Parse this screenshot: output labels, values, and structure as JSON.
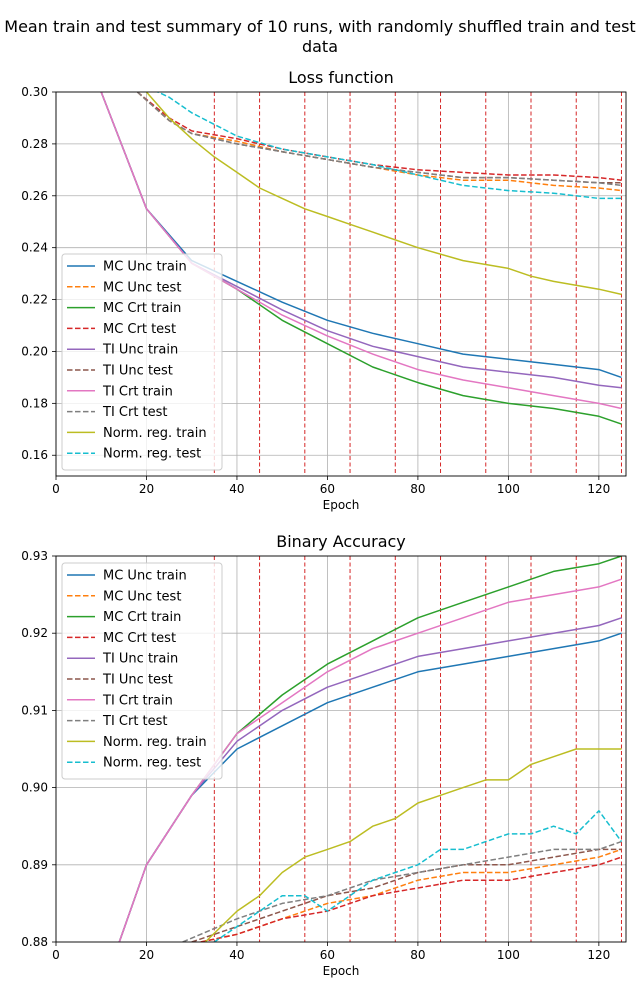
{
  "suptitle": "Mean train and test summary of 10 runs, with randomly shuffled train and test data",
  "chart_data": [
    {
      "type": "line",
      "title": "Loss function",
      "xlabel": "Epoch",
      "ylabel": "",
      "xlim": [
        0,
        126
      ],
      "ylim": [
        0.152,
        0.3
      ],
      "xticks": [
        0,
        20,
        40,
        60,
        80,
        100,
        120
      ],
      "xtick_labels": [
        "0",
        "20",
        "40",
        "60",
        "80",
        "100",
        "120"
      ],
      "yticks": [
        0.16,
        0.18,
        0.2,
        0.22,
        0.24,
        0.26,
        0.28,
        0.3
      ],
      "ytick_labels": [
        "0.16",
        "0.18",
        "0.20",
        "0.22",
        "0.24",
        "0.26",
        "0.28",
        "0.30"
      ],
      "grid": true,
      "legend": "lower-left",
      "vlines": {
        "x": [
          35,
          45,
          55,
          65,
          75,
          85,
          95,
          105,
          115,
          125
        ],
        "color": "#d62728",
        "style": "dashed"
      },
      "series": [
        {
          "name": "MC Unc train",
          "color": "#1f77b4",
          "dash": "solid",
          "x": [
            10,
            20,
            30,
            40,
            50,
            60,
            70,
            80,
            90,
            100,
            110,
            120,
            125
          ],
          "y": [
            0.3,
            0.255,
            0.235,
            0.227,
            0.219,
            0.212,
            0.207,
            0.203,
            0.199,
            0.197,
            0.195,
            0.193,
            0.19
          ]
        },
        {
          "name": "MC Unc test",
          "color": "#ff7f0e",
          "dash": "dashed",
          "x": [
            18,
            25,
            30,
            40,
            50,
            60,
            70,
            80,
            90,
            100,
            110,
            120,
            125
          ],
          "y": [
            0.3,
            0.289,
            0.284,
            0.281,
            0.277,
            0.274,
            0.271,
            0.268,
            0.266,
            0.266,
            0.264,
            0.263,
            0.262
          ]
        },
        {
          "name": "MC Crt train",
          "color": "#2ca02c",
          "dash": "solid",
          "x": [
            10,
            20,
            30,
            40,
            50,
            60,
            70,
            80,
            90,
            100,
            110,
            120,
            125
          ],
          "y": [
            0.3,
            0.255,
            0.234,
            0.224,
            0.212,
            0.203,
            0.194,
            0.188,
            0.183,
            0.18,
            0.178,
            0.175,
            0.172
          ]
        },
        {
          "name": "MC Crt test",
          "color": "#d62728",
          "dash": "dashed",
          "x": [
            18,
            25,
            30,
            40,
            50,
            60,
            70,
            80,
            90,
            100,
            110,
            120,
            125
          ],
          "y": [
            0.3,
            0.29,
            0.285,
            0.282,
            0.278,
            0.275,
            0.272,
            0.27,
            0.269,
            0.268,
            0.268,
            0.267,
            0.266
          ]
        },
        {
          "name": "TI Unc train",
          "color": "#9467bd",
          "dash": "solid",
          "x": [
            10,
            20,
            30,
            40,
            50,
            60,
            70,
            80,
            90,
            100,
            110,
            120,
            125
          ],
          "y": [
            0.3,
            0.255,
            0.234,
            0.225,
            0.216,
            0.208,
            0.202,
            0.198,
            0.194,
            0.192,
            0.19,
            0.187,
            0.186
          ]
        },
        {
          "name": "TI Unc test",
          "color": "#8c564b",
          "dash": "dashed",
          "x": [
            18,
            25,
            30,
            40,
            50,
            60,
            70,
            80,
            90,
            100,
            110,
            120,
            125
          ],
          "y": [
            0.3,
            0.289,
            0.284,
            0.28,
            0.277,
            0.274,
            0.271,
            0.269,
            0.267,
            0.267,
            0.266,
            0.265,
            0.265
          ]
        },
        {
          "name": "TI Crt train",
          "color": "#e377c2",
          "dash": "solid",
          "x": [
            10,
            20,
            30,
            40,
            50,
            60,
            70,
            80,
            90,
            100,
            110,
            120,
            125
          ],
          "y": [
            0.3,
            0.255,
            0.234,
            0.224,
            0.214,
            0.206,
            0.199,
            0.193,
            0.189,
            0.186,
            0.183,
            0.18,
            0.178
          ]
        },
        {
          "name": "TI Crt test",
          "color": "#7f7f7f",
          "dash": "dashed",
          "x": [
            18,
            25,
            30,
            40,
            50,
            60,
            70,
            80,
            90,
            100,
            110,
            120,
            125
          ],
          "y": [
            0.3,
            0.289,
            0.284,
            0.28,
            0.277,
            0.274,
            0.271,
            0.269,
            0.267,
            0.267,
            0.266,
            0.265,
            0.264
          ]
        },
        {
          "name": "Norm. reg. train",
          "color": "#bcbd22",
          "dash": "solid",
          "x": [
            20,
            25,
            30,
            35,
            40,
            45,
            50,
            55,
            60,
            65,
            70,
            80,
            90,
            100,
            105,
            110,
            120,
            125
          ],
          "y": [
            0.3,
            0.29,
            0.282,
            0.275,
            0.269,
            0.263,
            0.259,
            0.255,
            0.252,
            0.249,
            0.246,
            0.24,
            0.235,
            0.232,
            0.229,
            0.227,
            0.224,
            0.222
          ]
        },
        {
          "name": "Norm. reg. test",
          "color": "#17becf",
          "dash": "dashed",
          "x": [
            20,
            25,
            30,
            40,
            50,
            60,
            70,
            80,
            90,
            100,
            110,
            120,
            125
          ],
          "y": [
            0.302,
            0.298,
            0.292,
            0.283,
            0.278,
            0.275,
            0.272,
            0.268,
            0.264,
            0.262,
            0.261,
            0.259,
            0.259
          ]
        }
      ]
    },
    {
      "type": "line",
      "title": "Binary Accuracy",
      "xlabel": "Epoch",
      "ylabel": "",
      "xlim": [
        0,
        126
      ],
      "ylim": [
        0.88,
        0.93
      ],
      "xticks": [
        0,
        20,
        40,
        60,
        80,
        100,
        120
      ],
      "xtick_labels": [
        "0",
        "20",
        "40",
        "60",
        "80",
        "100",
        "120"
      ],
      "yticks": [
        0.88,
        0.89,
        0.9,
        0.91,
        0.92,
        0.93
      ],
      "ytick_labels": [
        "0.88",
        "0.89",
        "0.90",
        "0.91",
        "0.92",
        "0.93"
      ],
      "grid": true,
      "legend": "upper-left",
      "vlines": {
        "x": [
          35,
          45,
          55,
          65,
          75,
          85,
          95,
          105,
          115,
          125
        ],
        "color": "#d62728",
        "style": "dashed"
      },
      "series": [
        {
          "name": "MC Unc train",
          "color": "#1f77b4",
          "dash": "solid",
          "x": [
            14,
            20,
            30,
            40,
            50,
            60,
            70,
            80,
            90,
            100,
            110,
            120,
            125
          ],
          "y": [
            0.88,
            0.89,
            0.899,
            0.905,
            0.908,
            0.911,
            0.913,
            0.915,
            0.916,
            0.917,
            0.918,
            0.919,
            0.92
          ]
        },
        {
          "name": "MC Unc test",
          "color": "#ff7f0e",
          "dash": "dashed",
          "x": [
            32,
            40,
            50,
            60,
            70,
            80,
            90,
            100,
            110,
            120,
            125
          ],
          "y": [
            0.88,
            0.881,
            0.883,
            0.885,
            0.886,
            0.888,
            0.889,
            0.889,
            0.89,
            0.891,
            0.892
          ]
        },
        {
          "name": "MC Crt train",
          "color": "#2ca02c",
          "dash": "solid",
          "x": [
            14,
            20,
            30,
            40,
            50,
            60,
            70,
            80,
            90,
            100,
            110,
            120,
            125
          ],
          "y": [
            0.88,
            0.89,
            0.899,
            0.907,
            0.912,
            0.916,
            0.919,
            0.922,
            0.924,
            0.926,
            0.928,
            0.929,
            0.93
          ]
        },
        {
          "name": "MC Crt test",
          "color": "#d62728",
          "dash": "dashed",
          "x": [
            32,
            40,
            50,
            60,
            70,
            80,
            90,
            100,
            110,
            120,
            125
          ],
          "y": [
            0.88,
            0.881,
            0.883,
            0.884,
            0.886,
            0.887,
            0.888,
            0.888,
            0.889,
            0.89,
            0.891
          ]
        },
        {
          "name": "TI Unc train",
          "color": "#9467bd",
          "dash": "solid",
          "x": [
            14,
            20,
            30,
            40,
            50,
            60,
            70,
            80,
            90,
            100,
            110,
            120,
            125
          ],
          "y": [
            0.88,
            0.89,
            0.899,
            0.906,
            0.91,
            0.913,
            0.915,
            0.917,
            0.918,
            0.919,
            0.92,
            0.921,
            0.922
          ]
        },
        {
          "name": "TI Unc test",
          "color": "#8c564b",
          "dash": "dashed",
          "x": [
            30,
            40,
            50,
            60,
            70,
            80,
            90,
            100,
            110,
            120,
            125
          ],
          "y": [
            0.88,
            0.882,
            0.884,
            0.886,
            0.887,
            0.889,
            0.89,
            0.89,
            0.891,
            0.892,
            0.892
          ]
        },
        {
          "name": "TI Crt train",
          "color": "#e377c2",
          "dash": "solid",
          "x": [
            14,
            20,
            30,
            40,
            50,
            60,
            70,
            80,
            90,
            100,
            110,
            120,
            125
          ],
          "y": [
            0.88,
            0.89,
            0.899,
            0.907,
            0.911,
            0.915,
            0.918,
            0.92,
            0.922,
            0.924,
            0.925,
            0.926,
            0.927
          ]
        },
        {
          "name": "TI Crt test",
          "color": "#7f7f7f",
          "dash": "dashed",
          "x": [
            28,
            40,
            50,
            60,
            70,
            80,
            90,
            100,
            110,
            120,
            125
          ],
          "y": [
            0.88,
            0.883,
            0.885,
            0.886,
            0.888,
            0.889,
            0.89,
            0.891,
            0.892,
            0.892,
            0.893
          ]
        },
        {
          "name": "Norm. reg. train",
          "color": "#bcbd22",
          "dash": "solid",
          "x": [
            33,
            40,
            45,
            50,
            55,
            60,
            65,
            70,
            75,
            80,
            85,
            90,
            95,
            100,
            105,
            110,
            115,
            120,
            125
          ],
          "y": [
            0.88,
            0.884,
            0.886,
            0.889,
            0.891,
            0.892,
            0.893,
            0.895,
            0.896,
            0.898,
            0.899,
            0.9,
            0.901,
            0.901,
            0.903,
            0.904,
            0.905,
            0.905,
            0.905
          ]
        },
        {
          "name": "Norm. reg. test",
          "color": "#17becf",
          "dash": "dashed",
          "x": [
            35,
            40,
            45,
            50,
            55,
            60,
            65,
            70,
            75,
            80,
            85,
            90,
            95,
            100,
            105,
            110,
            115,
            120,
            125
          ],
          "y": [
            0.88,
            0.882,
            0.884,
            0.886,
            0.886,
            0.884,
            0.886,
            0.888,
            0.889,
            0.89,
            0.892,
            0.892,
            0.893,
            0.894,
            0.894,
            0.895,
            0.894,
            0.897,
            0.893
          ]
        }
      ]
    }
  ]
}
